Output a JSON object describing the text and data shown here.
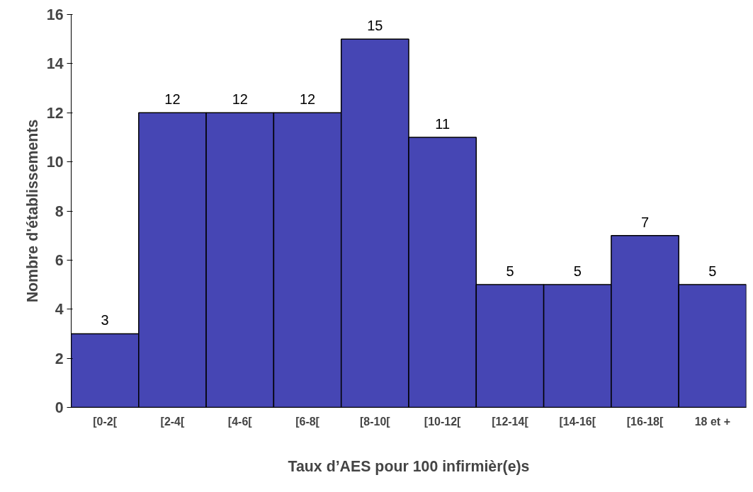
{
  "chart_data": {
    "type": "bar",
    "xlabel": "Taux d’AES pour 100 infirmièr(e)s",
    "ylabel": "Nombre d'établissements",
    "categories": [
      "[0-2[",
      "[2-4[",
      "[4-6[",
      "[6-8[",
      "[8-10[",
      "[10-12[",
      "[12-14[",
      "[14-16[",
      "[16-18[",
      "18 et +"
    ],
    "values": [
      3,
      12,
      12,
      12,
      15,
      11,
      5,
      5,
      7,
      5
    ],
    "color": "#4646b4",
    "ylim": [
      0,
      16
    ],
    "yticks": [
      0,
      2,
      4,
      6,
      8,
      10,
      12,
      14,
      16
    ],
    "grid": false,
    "data_labels": true
  }
}
